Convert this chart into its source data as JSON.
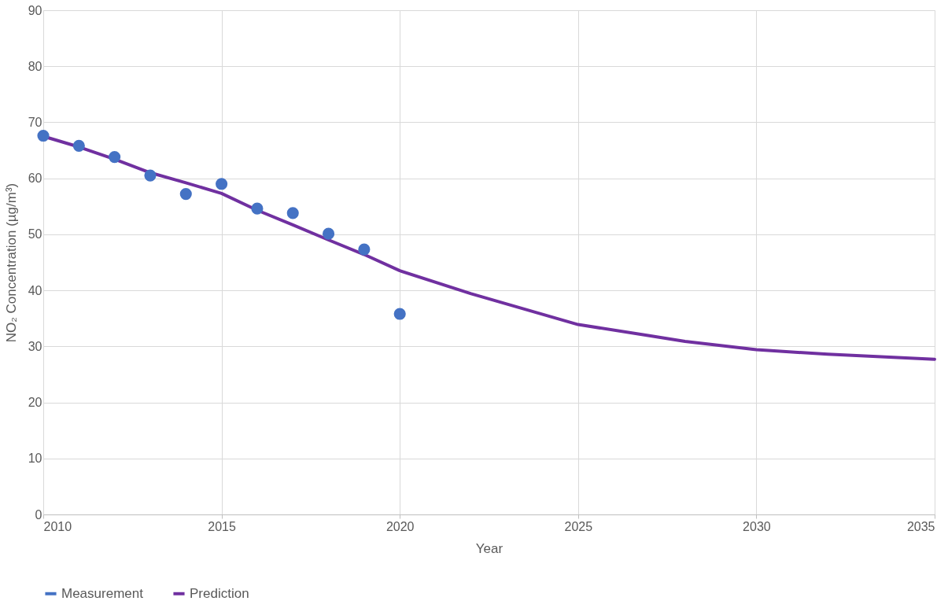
{
  "chart_data": {
    "type": "scatter",
    "xlabel": "Year",
    "ylabel": "NO₂ Concentration (µg/m³)",
    "xlim": [
      2010,
      2035
    ],
    "xticks": [
      2010,
      2015,
      2020,
      2025,
      2030,
      2035
    ],
    "ylim": [
      0,
      90
    ],
    "yticks": [
      0,
      10,
      20,
      30,
      40,
      50,
      60,
      70,
      80,
      90
    ],
    "grid": true,
    "legend": "bottom",
    "series": [
      {
        "name": "Measurement",
        "marker": "circle",
        "color": "#4472c4",
        "x": [
          2010,
          2011,
          2012,
          2013,
          2014,
          2015,
          2016,
          2017,
          2018,
          2019,
          2020
        ],
        "values": [
          67.6,
          65.8,
          63.8,
          60.5,
          57.2,
          59.0,
          54.6,
          53.8,
          50.1,
          47.3,
          35.8
        ]
      },
      {
        "name": "Prediction",
        "type": "line",
        "marker": "none",
        "line_style": "solid",
        "color": "#7030a0",
        "x": [
          2010,
          2011,
          2012,
          2013,
          2014,
          2015,
          2016,
          2017,
          2018,
          2019,
          2020,
          2022,
          2025,
          2027,
          2028,
          2030,
          2032,
          2035
        ],
        "values": [
          67.5,
          65.6,
          63.4,
          61.0,
          59.2,
          57.3,
          54.3,
          51.7,
          49.0,
          46.4,
          43.5,
          39.4,
          33.9,
          31.9,
          30.9,
          29.4,
          28.6,
          27.7
        ]
      }
    ]
  }
}
